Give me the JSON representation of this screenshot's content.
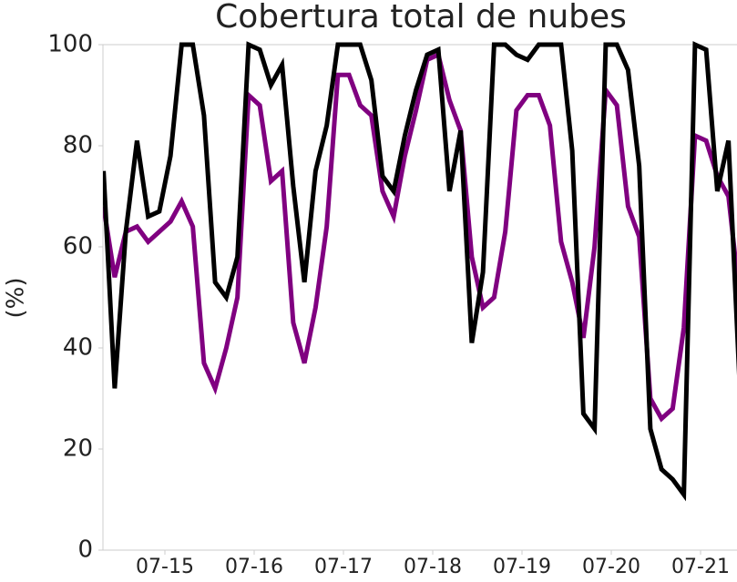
{
  "chart_data": {
    "type": "line",
    "title": "Cobertura total de nubes",
    "y_label": "(%)",
    "x": [
      14.3125,
      14.4375,
      14.5625,
      14.6875,
      14.8125,
      14.9375,
      15.0625,
      15.1875,
      15.3125,
      15.4375,
      15.5625,
      15.6875,
      15.8125,
      15.9375,
      16.0625,
      16.1875,
      16.3125,
      16.4375,
      16.5625,
      16.6875,
      16.8125,
      16.9375,
      17.0625,
      17.1875,
      17.3125,
      17.4375,
      17.5625,
      17.6875,
      17.8125,
      17.9375,
      18.0625,
      18.1875,
      18.3125,
      18.4375,
      18.5625,
      18.6875,
      18.8125,
      18.9375,
      19.0625,
      19.1875,
      19.3125,
      19.4375,
      19.5625,
      19.6875,
      19.8125,
      19.9375,
      20.0625,
      20.1875,
      20.3125,
      20.4375,
      20.5625,
      20.6875,
      20.8125,
      20.9375,
      21.0625,
      21.1875,
      21.3125,
      21.4375
    ],
    "series": [
      {
        "color": "#800080",
        "values": [
          68,
          54,
          63,
          64,
          61,
          63,
          65,
          69,
          64,
          37,
          32,
          40,
          50,
          90,
          88,
          73,
          75,
          45,
          37,
          48,
          64,
          94,
          94,
          88,
          86,
          71,
          66,
          78,
          87,
          97,
          98,
          89,
          83,
          58,
          48,
          50,
          63,
          87,
          90,
          90,
          84,
          61,
          53,
          42,
          60,
          91,
          88,
          68,
          62,
          30,
          26,
          28,
          44,
          82,
          81,
          74,
          70,
          50
        ]
      },
      {
        "color": "#000000",
        "values": [
          75,
          32,
          63,
          81,
          66,
          67,
          78,
          100,
          100,
          86,
          53,
          50,
          58,
          100,
          99,
          92,
          96,
          72,
          53,
          75,
          84,
          100,
          100,
          100,
          93,
          74,
          71,
          82,
          91,
          98,
          99,
          71,
          83,
          41,
          55,
          100,
          100,
          98,
          97,
          100,
          100,
          100,
          79,
          27,
          24,
          100,
          100,
          95,
          76,
          24,
          16,
          14,
          11,
          100,
          99,
          71,
          81,
          33
        ]
      }
    ],
    "xlim": [
      14.306,
      21.408
    ],
    "ylim": [
      0,
      100
    ],
    "xticks": [
      {
        "value": 15,
        "label": "07-15"
      },
      {
        "value": 16,
        "label": "07-16"
      },
      {
        "value": 17,
        "label": "07-17"
      },
      {
        "value": 18,
        "label": "07-18"
      },
      {
        "value": 19,
        "label": "07-19"
      },
      {
        "value": 20,
        "label": "07-20"
      },
      {
        "value": 21,
        "label": "07-21"
      }
    ],
    "yticks": [
      0,
      20,
      40,
      60,
      80,
      100
    ]
  }
}
